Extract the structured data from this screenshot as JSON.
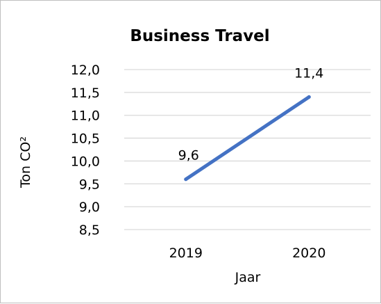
{
  "chart_data": {
    "type": "line",
    "title": "Business Travel",
    "xlabel": "Jaar",
    "ylabel": "Ton CO²",
    "categories": [
      "2019",
      "2020"
    ],
    "series": [
      {
        "values": [
          9.6,
          11.4
        ],
        "data_labels": [
          "9,6",
          "11,4"
        ],
        "color": "#4472c4"
      }
    ],
    "ylim": [
      8.5,
      12.0
    ],
    "yticks": [
      {
        "value": 12.0,
        "label": "12,0"
      },
      {
        "value": 11.5,
        "label": "11,5"
      },
      {
        "value": 11.0,
        "label": "11,0"
      },
      {
        "value": 10.5,
        "label": "10,5"
      },
      {
        "value": 10.0,
        "label": "10,0"
      },
      {
        "value": 9.5,
        "label": "9,5"
      },
      {
        "value": 9.0,
        "label": "9,0"
      },
      {
        "value": 8.5,
        "label": "8,5"
      }
    ],
    "grid": true,
    "legend": "none"
  }
}
